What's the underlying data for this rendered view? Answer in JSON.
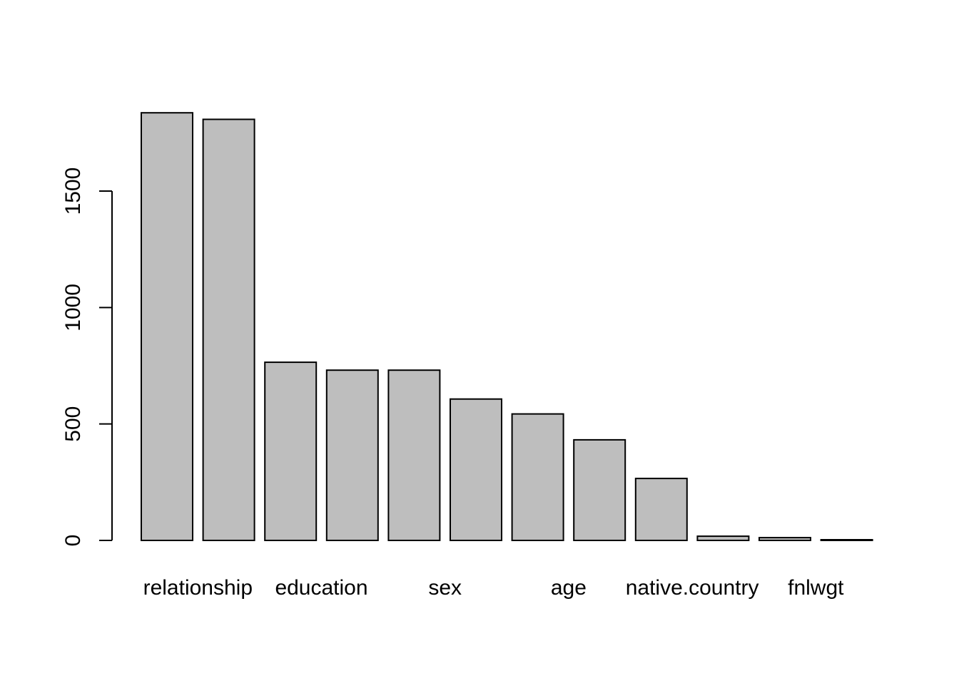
{
  "chart_data": {
    "type": "bar",
    "title": "",
    "xlabel": "",
    "ylabel": "",
    "categories": [
      "relationship",
      "",
      "education",
      "",
      "sex",
      "",
      "age",
      "",
      "native.country",
      "",
      "fnlwgt",
      ""
    ],
    "values": [
      1836,
      1808,
      765,
      731,
      731,
      607,
      543,
      432,
      266,
      18,
      12,
      3
    ],
    "ylim": [
      0,
      1836
    ],
    "yticks": [
      0,
      500,
      1000,
      1500
    ],
    "ytick_labels": [
      "0",
      "500",
      "1000",
      "1500"
    ],
    "x_tick_labels": [
      {
        "label": "relationship",
        "bar_index": 0.5
      },
      {
        "label": "education",
        "bar_index": 2.5
      },
      {
        "label": "sex",
        "bar_index": 4.5
      },
      {
        "label": "age",
        "bar_index": 6.5
      },
      {
        "label": "native.country",
        "bar_index": 8.5
      },
      {
        "label": "fnlwgt",
        "bar_index": 10.5
      }
    ],
    "grid": false,
    "legend": "none",
    "colors": {
      "bar_fill": "#bebebe",
      "bar_stroke": "#000000",
      "axis": "#000000",
      "background": "#ffffff"
    }
  }
}
